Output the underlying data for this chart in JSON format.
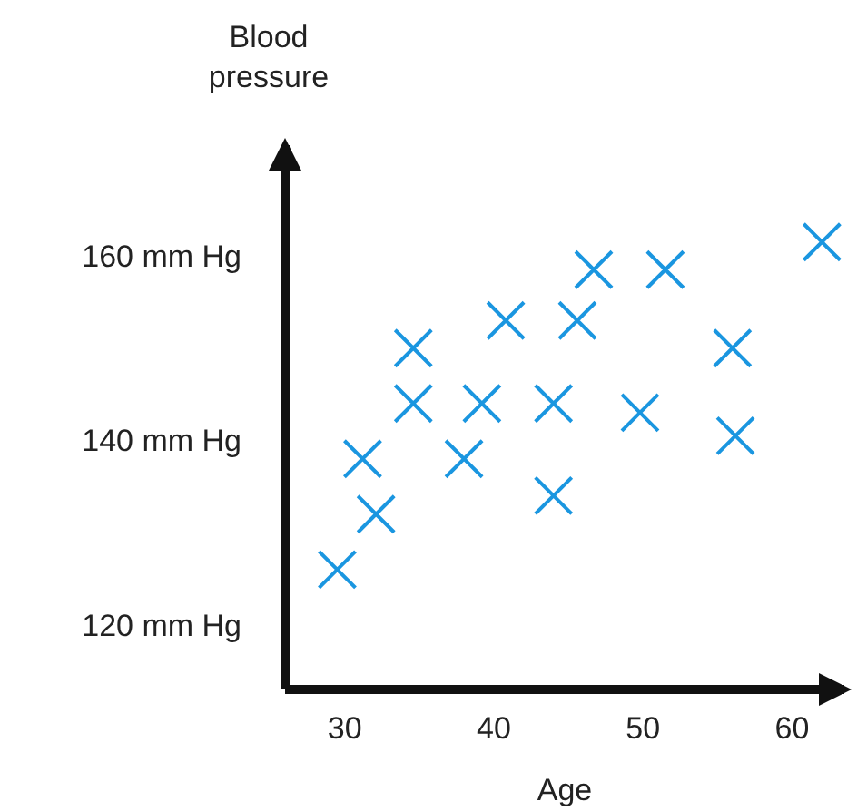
{
  "chart_data": {
    "type": "scatter",
    "xlabel": "Age",
    "ylabel": "Blood pressure",
    "marker": "cross",
    "grid": false,
    "x": [
      29.5,
      31.2,
      32.1,
      34.6,
      34.6,
      38,
      39.2,
      40.8,
      44,
      44,
      45.6,
      46.7,
      49.8,
      51.5,
      56,
      56.2,
      62
    ],
    "series": [
      {
        "color": "#1a96e0",
        "values": [
          126,
          138,
          132,
          150,
          144,
          138,
          144,
          153,
          134,
          144,
          153,
          158.5,
          143,
          158.5,
          150,
          140.5,
          161.5
        ]
      }
    ],
    "xlim": [
      26,
      63.5
    ],
    "ylim": [
      113,
      172
    ],
    "xticks": [
      30,
      40,
      50,
      60
    ],
    "yticks": [
      {
        "value": 120,
        "label": "120 mm Hg"
      },
      {
        "value": 140,
        "label": "140 mm Hg"
      },
      {
        "value": 160,
        "label": "160 mm Hg"
      }
    ]
  }
}
